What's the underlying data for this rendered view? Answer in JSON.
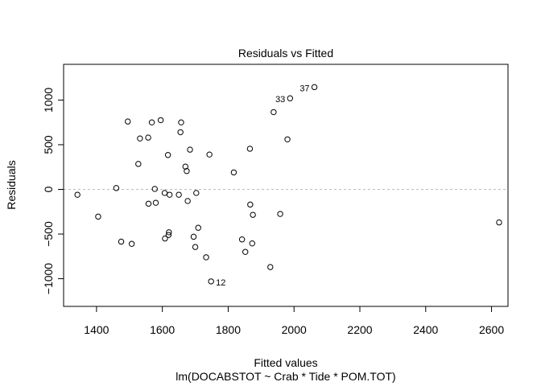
{
  "chart_data": {
    "type": "scatter",
    "title": "Residuals vs Fitted",
    "xlabel": "Fitted values",
    "subtitle": "lm(DOCABSTOT ~ Crab * Tide * POM.TOT)",
    "ylabel": "Residuals",
    "xlim": [
      1300,
      2650
    ],
    "ylim": [
      -1310,
      1400
    ],
    "xticks": [
      1400,
      1600,
      1800,
      2000,
      2200,
      2400,
      2600
    ],
    "yticks": [
      -1000,
      -500,
      0,
      500,
      1000
    ],
    "reference_line": 0,
    "grid": false,
    "points": [
      {
        "x": 1342,
        "y": -60
      },
      {
        "x": 1405,
        "y": -305
      },
      {
        "x": 1460,
        "y": 15
      },
      {
        "x": 1475,
        "y": -585
      },
      {
        "x": 1495,
        "y": 760
      },
      {
        "x": 1507,
        "y": -610
      },
      {
        "x": 1527,
        "y": 285
      },
      {
        "x": 1532,
        "y": 570
      },
      {
        "x": 1557,
        "y": 580
      },
      {
        "x": 1558,
        "y": -160
      },
      {
        "x": 1568,
        "y": 750
      },
      {
        "x": 1577,
        "y": 5
      },
      {
        "x": 1580,
        "y": -150
      },
      {
        "x": 1595,
        "y": 775
      },
      {
        "x": 1607,
        "y": -40
      },
      {
        "x": 1608,
        "y": -550
      },
      {
        "x": 1617,
        "y": 385
      },
      {
        "x": 1619,
        "y": -510
      },
      {
        "x": 1620,
        "y": -480
      },
      {
        "x": 1622,
        "y": -60
      },
      {
        "x": 1650,
        "y": -60
      },
      {
        "x": 1655,
        "y": 640
      },
      {
        "x": 1657,
        "y": 750
      },
      {
        "x": 1670,
        "y": 255
      },
      {
        "x": 1674,
        "y": 205
      },
      {
        "x": 1677,
        "y": -130
      },
      {
        "x": 1684,
        "y": 445
      },
      {
        "x": 1695,
        "y": -530
      },
      {
        "x": 1700,
        "y": -645
      },
      {
        "x": 1703,
        "y": -40
      },
      {
        "x": 1709,
        "y": -430
      },
      {
        "x": 1733,
        "y": -760
      },
      {
        "x": 1743,
        "y": 390
      },
      {
        "x": 1748,
        "y": -1030
      },
      {
        "x": 1817,
        "y": 190
      },
      {
        "x": 1842,
        "y": -560
      },
      {
        "x": 1852,
        "y": -700
      },
      {
        "x": 1866,
        "y": 455
      },
      {
        "x": 1867,
        "y": -170
      },
      {
        "x": 1873,
        "y": -605
      },
      {
        "x": 1875,
        "y": -285
      },
      {
        "x": 1928,
        "y": -870
      },
      {
        "x": 1938,
        "y": 865
      },
      {
        "x": 1958,
        "y": -275
      },
      {
        "x": 1980,
        "y": 560
      },
      {
        "x": 1988,
        "y": 1020
      },
      {
        "x": 2062,
        "y": 1145
      },
      {
        "x": 2623,
        "y": -370
      }
    ],
    "point_labels": [
      {
        "text": "37",
        "x": 2062,
        "y": 1145,
        "side": "left"
      },
      {
        "text": "33",
        "x": 1988,
        "y": 1020,
        "side": "left"
      },
      {
        "text": "12",
        "x": 1748,
        "y": -1030,
        "side": "right"
      }
    ]
  }
}
